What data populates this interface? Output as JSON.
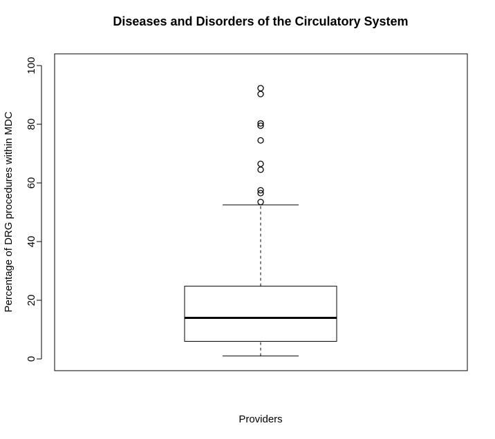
{
  "chart_data": {
    "type": "boxplot",
    "title": "Diseases and Disorders of the Circulatory System",
    "xlabel": "Providers",
    "ylabel": "Percentage of DRG procedures within MDC",
    "ylim": [
      -4,
      104
    ],
    "yticks": [
      0,
      20,
      40,
      60,
      80,
      100
    ],
    "grid": false,
    "legend": "none",
    "box": {
      "whisker_low": 1,
      "q1": 6,
      "median": 14,
      "q3": 24.8,
      "whisker_high": 52.5
    },
    "outliers": [
      53.5,
      56.5,
      57.5,
      64.5,
      66.5,
      74.5,
      79.5,
      80.3,
      90.3,
      92.3
    ]
  }
}
